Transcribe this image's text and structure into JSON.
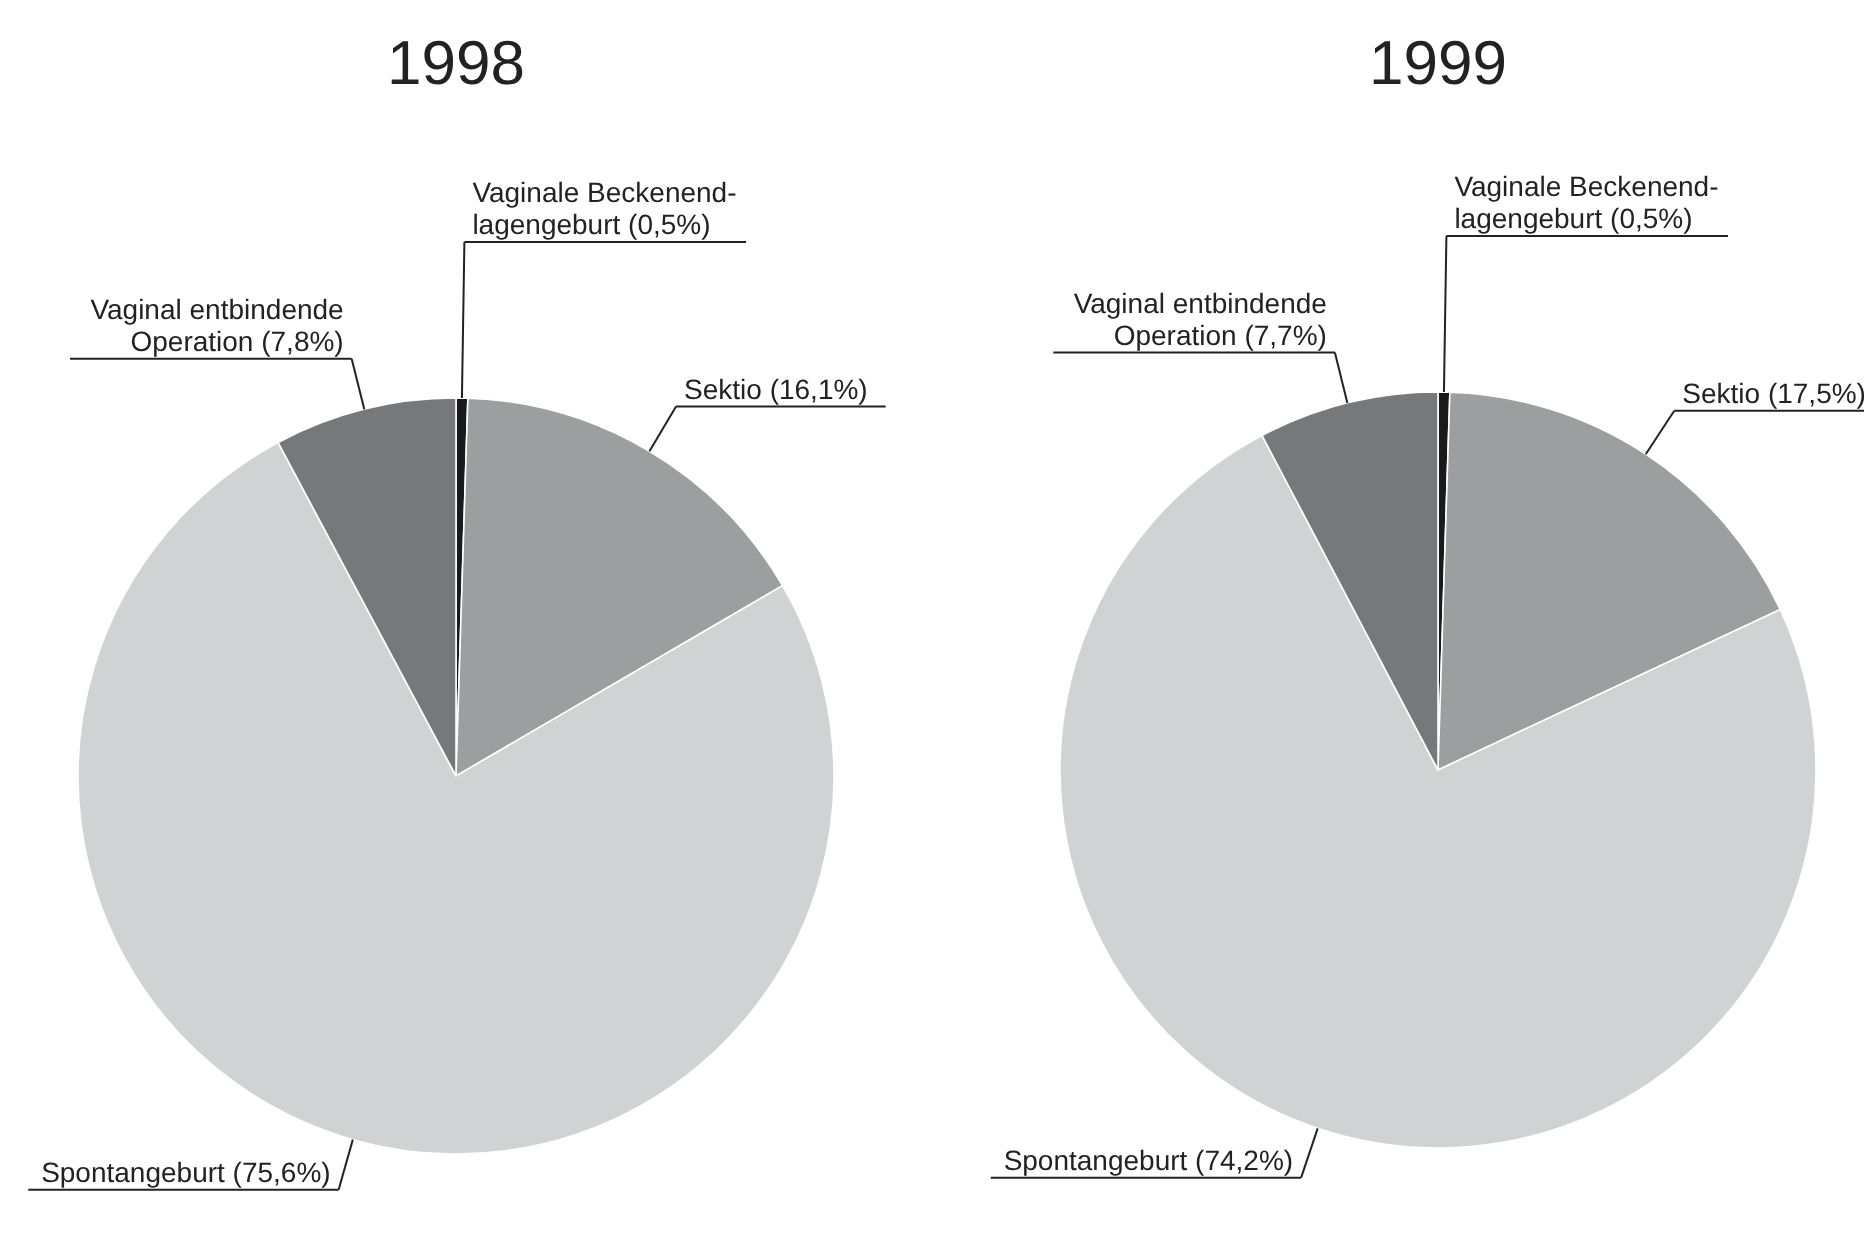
{
  "chart_data": [
    {
      "type": "pie",
      "title": "1998",
      "categories": [
        "Vaginale Beckenend-lagengeburt",
        "Sektio",
        "Spontangeburt",
        "Vaginal entbindende Operation"
      ],
      "values": [
        0.5,
        16.1,
        75.6,
        7.8
      ],
      "value_labels": [
        "(0,5%)",
        "(16,1%)",
        "(75,6%)",
        "(7,8%)"
      ],
      "colors": [
        "#1a1a1a",
        "#9d9ea0",
        "#d1d2d4",
        "#77787b"
      ]
    },
    {
      "type": "pie",
      "title": "1999",
      "categories": [
        "Vaginale Beckenend-lagengeburt",
        "Sektio",
        "Spontangeburt",
        "Vaginal entbindende Operation"
      ],
      "values": [
        0.5,
        17.5,
        74.2,
        7.7
      ],
      "value_labels": [
        "(0,5%)",
        "(17,5%)",
        "(74,2%)",
        "(7,7%)"
      ],
      "colors": [
        "#1a1a1a",
        "#9d9ea0",
        "#d1d2d4",
        "#77787b"
      ]
    }
  ]
}
